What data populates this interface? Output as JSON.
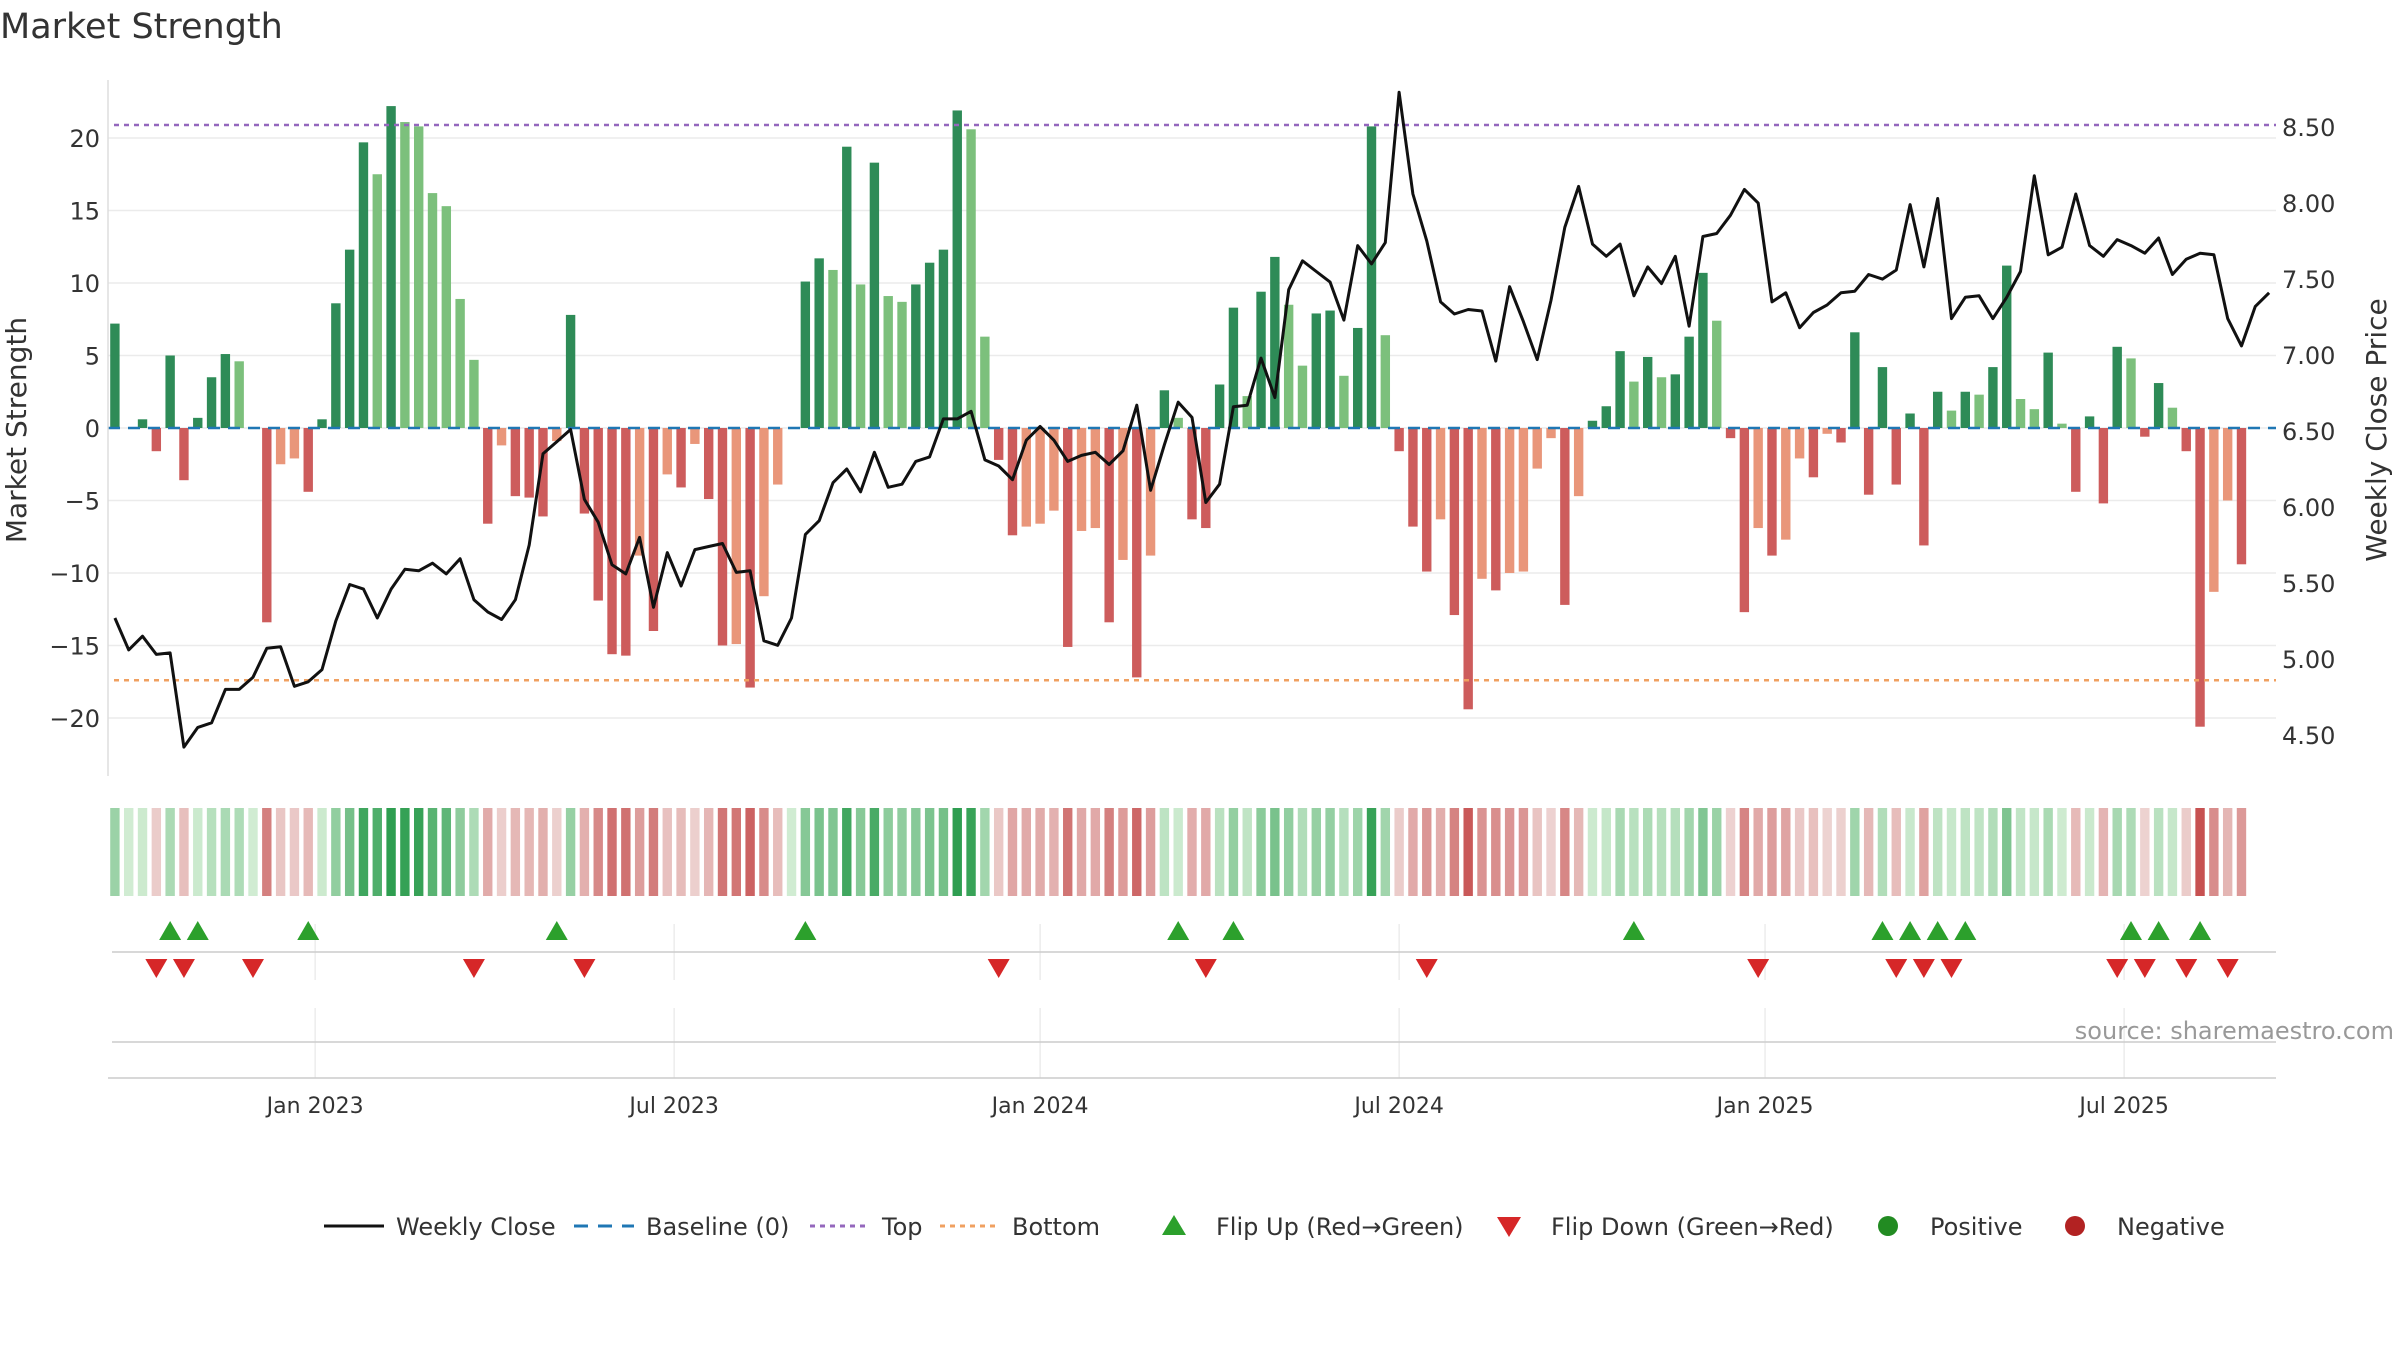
{
  "chart_data": {
    "type": "bar+line",
    "title": "Market Strength",
    "ylabel_left": "Market Strength",
    "ylabel_right": "Weekly Close Price",
    "source": "source: sharemaestro.com",
    "ylim_left": [
      -24,
      24
    ],
    "ylim_right": [
      4.23,
      8.81
    ],
    "yticks_left": [
      -20,
      -15,
      -10,
      -5,
      0,
      5,
      10,
      15,
      20
    ],
    "yticks_right": [
      "4.50",
      "5.00",
      "5.50",
      "6.00",
      "6.50",
      "7.00",
      "7.50",
      "8.00",
      "8.50"
    ],
    "yticks_right_values": [
      4.5,
      5.0,
      5.5,
      6.0,
      6.5,
      7.0,
      7.5,
      8.0,
      8.5
    ],
    "x_range_weeks": [
      0,
      157
    ],
    "xticks": [
      {
        "label": "Jan 2023",
        "week": 15
      },
      {
        "label": "Jul 2023",
        "week": 41
      },
      {
        "label": "Jan 2024",
        "week": 67.5
      },
      {
        "label": "Jul 2024",
        "week": 93.5
      },
      {
        "label": "Jan 2025",
        "week": 120
      },
      {
        "label": "Jul 2025",
        "week": 146
      }
    ],
    "top_line": 20.9,
    "bottom_line": -17.4,
    "weeks": 157,
    "strength": [
      7.2,
      0,
      0.6,
      -1.6,
      5,
      -3.6,
      0.7,
      3.5,
      5.1,
      4.6,
      0,
      -13.4,
      -2.5,
      -2.1,
      -4.4,
      0.6,
      8.6,
      12.3,
      19.7,
      17.5,
      22.2,
      21.1,
      20.8,
      16.2,
      15.3,
      8.9,
      4.7,
      -6.6,
      -1.2,
      -4.7,
      -4.8,
      -6.1,
      -0.9,
      7.8,
      -5.9,
      -11.9,
      -15.6,
      -15.7,
      -8.8,
      -14,
      -3.2,
      -4.1,
      -1.1,
      -4.9,
      -15,
      -14.9,
      -17.9,
      -11.6,
      -3.9,
      0,
      10.1,
      11.7,
      10.9,
      19.4,
      9.9,
      18.3,
      9.1,
      8.7,
      9.9,
      11.4,
      12.3,
      21.9,
      20.6,
      6.3,
      -2.2,
      -7.4,
      -6.8,
      -6.6,
      -5.7,
      -15.1,
      -7.1,
      -6.9,
      -13.4,
      -9.1,
      -17.2,
      -8.8,
      2.6,
      0.7,
      -6.3,
      -6.9,
      3,
      8.3,
      2.2,
      9.4,
      11.8,
      8.5,
      4.3,
      7.9,
      8.1,
      3.6,
      6.9,
      20.8,
      6.4,
      -1.6,
      -6.8,
      -9.9,
      -6.3,
      -12.9,
      -19.4,
      -10.4,
      -11.2,
      -10,
      -9.9,
      -2.8,
      -0.7,
      -12.2,
      -4.7,
      0.5,
      1.5,
      5.3,
      3.2,
      4.9,
      3.5,
      3.7,
      6.3,
      10.7,
      7.4,
      -0.7,
      -12.7,
      -6.9,
      -8.8,
      -7.7,
      -2.1,
      -3.4,
      -0.4,
      -1,
      6.6,
      -4.6,
      4.2,
      -3.9,
      1,
      -8.1,
      2.5,
      1.2,
      2.5,
      2.3,
      4.2,
      11.2,
      2,
      1.3,
      5.2,
      0.3,
      -4.4,
      0.8,
      -5.2,
      5.6,
      4.8,
      -0.6,
      3.1,
      1.4,
      -1.6,
      -20.6,
      -11.3,
      -5,
      -9.4
    ],
    "close": [
      5.27,
      5.06,
      5.15,
      5.03,
      5.04,
      4.42,
      4.55,
      4.58,
      4.8,
      4.8,
      4.88,
      5.07,
      5.08,
      4.82,
      4.85,
      4.93,
      5.25,
      5.49,
      5.46,
      5.27,
      5.46,
      5.59,
      5.58,
      5.63,
      5.56,
      5.66,
      5.39,
      5.31,
      5.26,
      5.39,
      5.75,
      6.35,
      6.43,
      6.51,
      6.05,
      5.9,
      5.62,
      5.56,
      5.8,
      5.34,
      5.7,
      5.48,
      5.72,
      5.74,
      5.76,
      5.57,
      5.58,
      5.12,
      5.09,
      5.27,
      5.82,
      5.91,
      6.16,
      6.25,
      6.1,
      6.36,
      6.13,
      6.15,
      6.3,
      6.33,
      6.58,
      6.58,
      6.63,
      6.31,
      6.27,
      6.18,
      6.44,
      6.53,
      6.44,
      6.3,
      6.34,
      6.36,
      6.28,
      6.37,
      6.67,
      6.11,
      6.41,
      6.69,
      6.59,
      6.03,
      6.15,
      6.66,
      6.67,
      6.98,
      6.72,
      7.43,
      7.62,
      7.55,
      7.48,
      7.23,
      7.72,
      7.6,
      7.74,
      8.73,
      8.06,
      7.75,
      7.35,
      7.27,
      7.3,
      7.29,
      6.96,
      7.45,
      7.22,
      6.97,
      7.36,
      7.84,
      8.11,
      7.73,
      7.65,
      7.73,
      7.39,
      7.58,
      7.47,
      7.65,
      7.19,
      7.78,
      7.8,
      7.92,
      8.09,
      8.0,
      7.35,
      7.41,
      7.18,
      7.28,
      7.33,
      7.41,
      7.42,
      7.53,
      7.5,
      7.56,
      7.99,
      7.58,
      8.03,
      7.24,
      7.38,
      7.39,
      7.24,
      7.38,
      7.55,
      8.18,
      7.66,
      7.71,
      8.06,
      7.72,
      7.65,
      7.76,
      7.72,
      7.67,
      7.77,
      7.53,
      7.63,
      7.67,
      7.66,
      7.24,
      7.06,
      7.32,
      7.41
    ],
    "flip_up_weeks": [
      4,
      6,
      14,
      32,
      50,
      77,
      81,
      110,
      128,
      130,
      132,
      134,
      146,
      148,
      151
    ],
    "flip_down_weeks": [
      3,
      5,
      10,
      26,
      34,
      64,
      79,
      95,
      119,
      129,
      131,
      133,
      145,
      147,
      150,
      153
    ],
    "legend": [
      {
        "label": "Weekly Close",
        "symbol": "line",
        "color": "#111111"
      },
      {
        "label": "Baseline (0)",
        "symbol": "dash",
        "color": "#1f77b4"
      },
      {
        "label": "Top",
        "symbol": "dot",
        "color": "#9467bd"
      },
      {
        "label": "Bottom",
        "symbol": "dot",
        "color": "#f0a060"
      },
      {
        "label": "Flip Up (Red→Green)",
        "symbol": "tri-up",
        "color": "#2ca02c"
      },
      {
        "label": "Flip Down (Green→Red)",
        "symbol": "tri-down",
        "color": "#d62728"
      },
      {
        "label": "Positive",
        "symbol": "circle",
        "color": "#228b22"
      },
      {
        "label": "Negative",
        "symbol": "circle",
        "color": "#b22222"
      }
    ],
    "colors": {
      "pos_dark": "#2e8b57",
      "pos_light": "#7cc07c",
      "neg_dark": "#cd5c5c",
      "neg_light": "#e9967a",
      "close_line": "#111111",
      "baseline": "#1f77b4",
      "top": "#9467bd",
      "bottom": "#f0a060",
      "flip_up": "#2ca02c",
      "flip_down": "#d62728"
    }
  }
}
